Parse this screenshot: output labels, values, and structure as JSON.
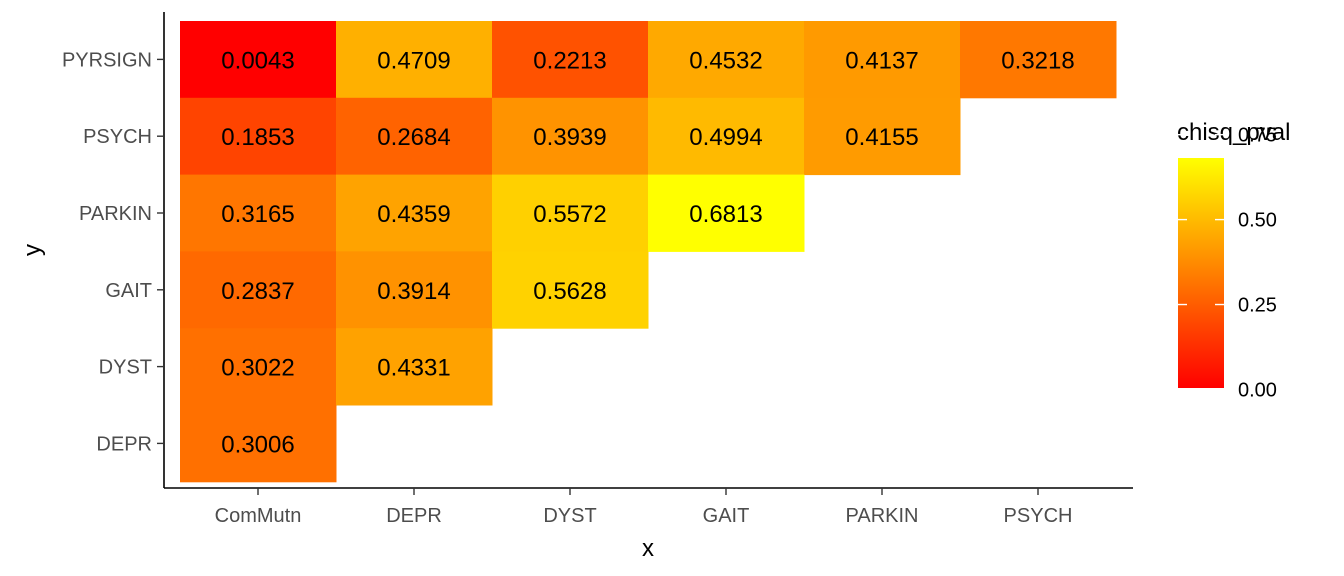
{
  "chart_data": {
    "type": "heatmap",
    "xlabel": "x",
    "ylabel": "y",
    "x_categories": [
      "ComMutn",
      "DEPR",
      "DYST",
      "GAIT",
      "PARKIN",
      "PSYCH"
    ],
    "y_categories": [
      "PYRSIGN",
      "PSYCH",
      "PARKIN",
      "GAIT",
      "DYST",
      "DEPR"
    ],
    "cells": [
      {
        "x": "ComMutn",
        "y": "PYRSIGN",
        "value": 0.0043,
        "label": "0.0043"
      },
      {
        "x": "DEPR",
        "y": "PYRSIGN",
        "value": 0.4709,
        "label": "0.4709"
      },
      {
        "x": "DYST",
        "y": "PYRSIGN",
        "value": 0.2213,
        "label": "0.2213"
      },
      {
        "x": "GAIT",
        "y": "PYRSIGN",
        "value": 0.4532,
        "label": "0.4532"
      },
      {
        "x": "PARKIN",
        "y": "PYRSIGN",
        "value": 0.4137,
        "label": "0.4137"
      },
      {
        "x": "PSYCH",
        "y": "PYRSIGN",
        "value": 0.3218,
        "label": "0.3218"
      },
      {
        "x": "ComMutn",
        "y": "PSYCH",
        "value": 0.1853,
        "label": "0.1853"
      },
      {
        "x": "DEPR",
        "y": "PSYCH",
        "value": 0.2684,
        "label": "0.2684"
      },
      {
        "x": "DYST",
        "y": "PSYCH",
        "value": 0.3939,
        "label": "0.3939"
      },
      {
        "x": "GAIT",
        "y": "PSYCH",
        "value": 0.4994,
        "label": "0.4994"
      },
      {
        "x": "PARKIN",
        "y": "PSYCH",
        "value": 0.4155,
        "label": "0.4155"
      },
      {
        "x": "ComMutn",
        "y": "PARKIN",
        "value": 0.3165,
        "label": "0.3165"
      },
      {
        "x": "DEPR",
        "y": "PARKIN",
        "value": 0.4359,
        "label": "0.4359"
      },
      {
        "x": "DYST",
        "y": "PARKIN",
        "value": 0.5572,
        "label": "0.5572"
      },
      {
        "x": "GAIT",
        "y": "PARKIN",
        "value": 0.6813,
        "label": "0.6813"
      },
      {
        "x": "ComMutn",
        "y": "GAIT",
        "value": 0.2837,
        "label": "0.2837"
      },
      {
        "x": "DEPR",
        "y": "GAIT",
        "value": 0.3914,
        "label": "0.3914"
      },
      {
        "x": "DYST",
        "y": "GAIT",
        "value": 0.5628,
        "label": "0.5628"
      },
      {
        "x": "ComMutn",
        "y": "DYST",
        "value": 0.3022,
        "label": "0.3022"
      },
      {
        "x": "DEPR",
        "y": "DYST",
        "value": 0.4331,
        "label": "0.4331"
      },
      {
        "x": "ComMutn",
        "y": "DEPR",
        "value": 0.3006,
        "label": "0.3006"
      }
    ],
    "legend": {
      "title": "chisq_pval",
      "placement": "right",
      "ticks": [
        {
          "value": 0.0,
          "label": "0.00"
        },
        {
          "value": 0.25,
          "label": "0.25"
        },
        {
          "value": 0.5,
          "label": "0.50"
        },
        {
          "value": 0.75,
          "label": "0.75"
        }
      ]
    },
    "color_scale": {
      "low": "#ff0000",
      "high": "#ffff00"
    },
    "grid": false
  }
}
